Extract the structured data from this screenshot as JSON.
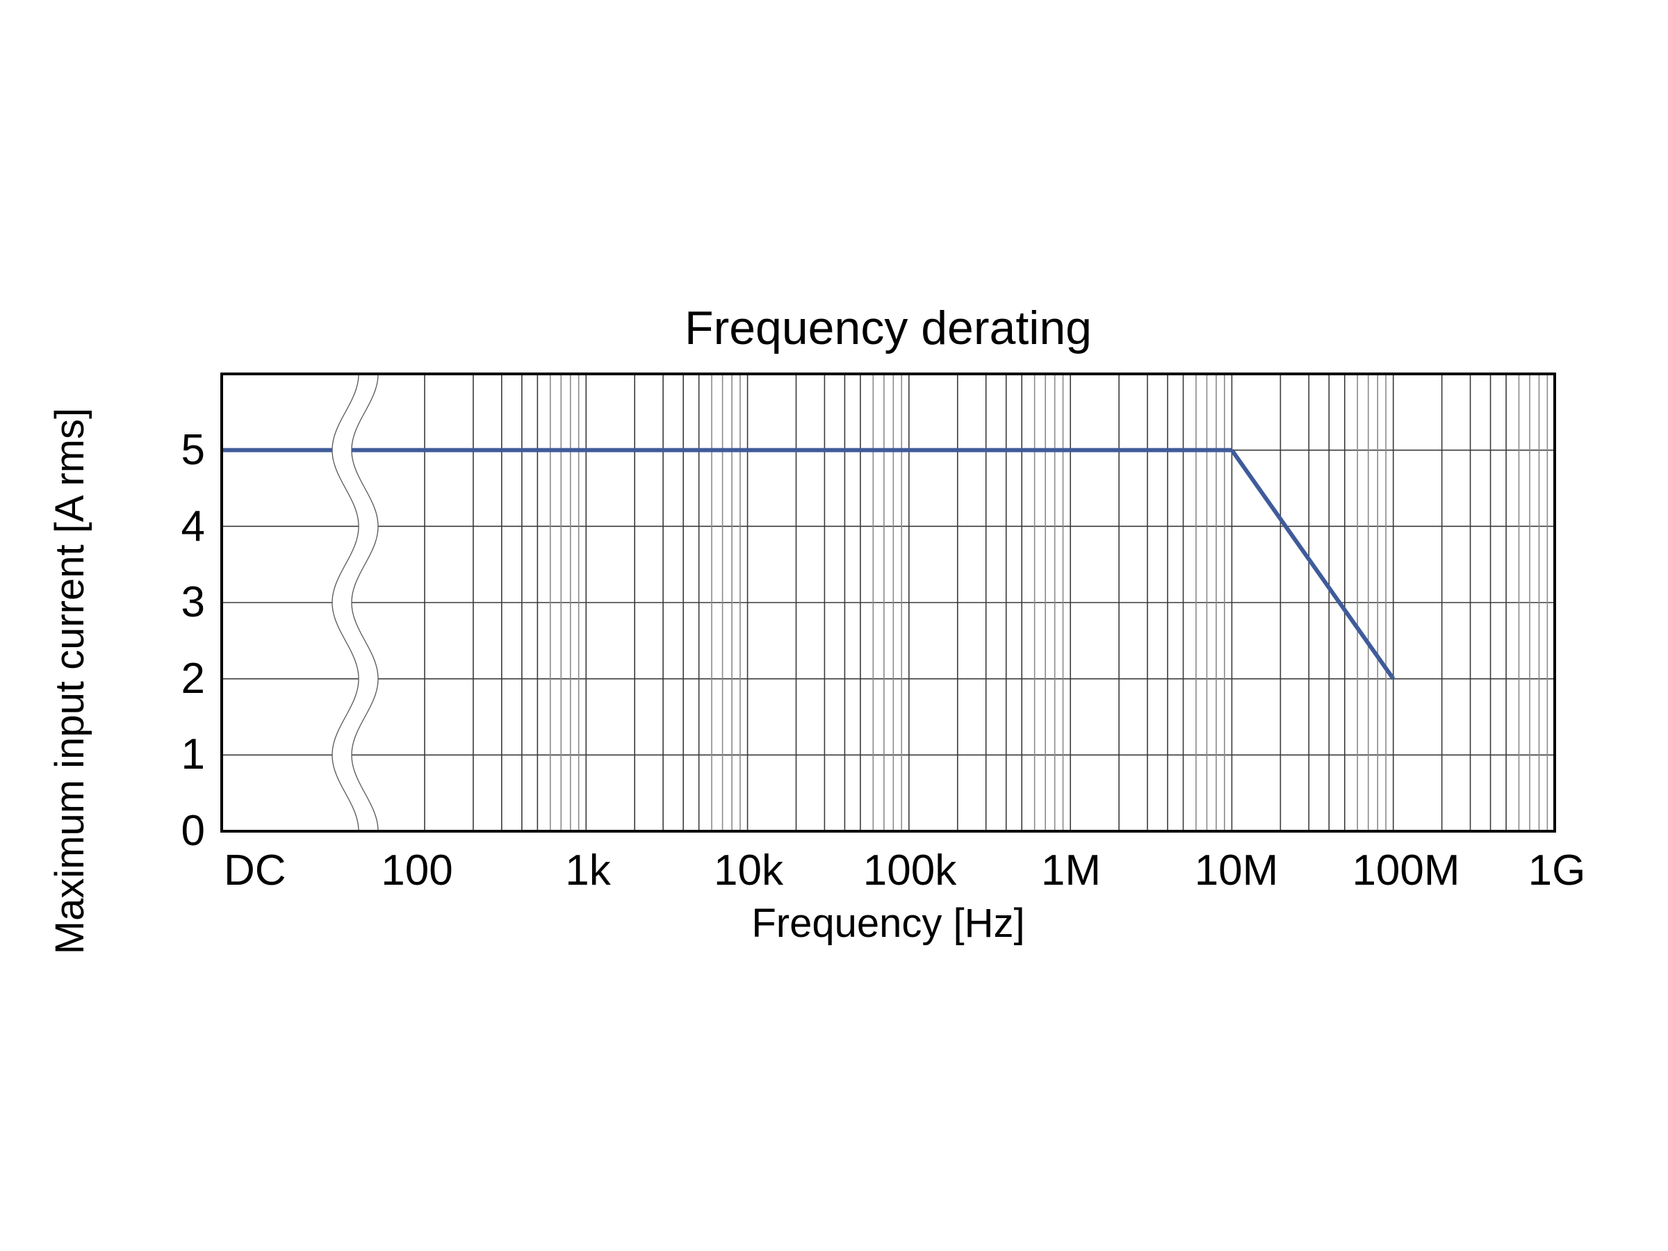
{
  "chart_data": {
    "type": "line",
    "title": "Frequency derating",
    "xlabel": "Frequency [Hz]",
    "ylabel": "Maximum input current [A rms]",
    "x_scale": "log",
    "x_axis_break": "DC to 100 Hz (wavy break symbol)",
    "xlim": [
      "DC",
      1000000000
    ],
    "ylim": [
      0,
      6
    ],
    "grid": true,
    "x_tick_labels": [
      "DC",
      "100",
      "1k",
      "10k",
      "100k",
      "1M",
      "10M",
      "100M",
      "1G"
    ],
    "x_tick_values": [
      0,
      100,
      1000,
      10000,
      100000,
      1000000,
      10000000,
      100000000,
      1000000000
    ],
    "y_tick_labels": [
      "0",
      "1",
      "2",
      "3",
      "4",
      "5"
    ],
    "y_tick_values": [
      0,
      1,
      2,
      3,
      4,
      5
    ],
    "legend": null,
    "series": [
      {
        "name": "Maximum input current",
        "color": "#3f5b9a",
        "points": [
          {
            "x": "DC",
            "y": 5
          },
          {
            "x": 10000000,
            "y": 5
          },
          {
            "x": 100000000,
            "y": 2
          }
        ]
      }
    ]
  }
}
